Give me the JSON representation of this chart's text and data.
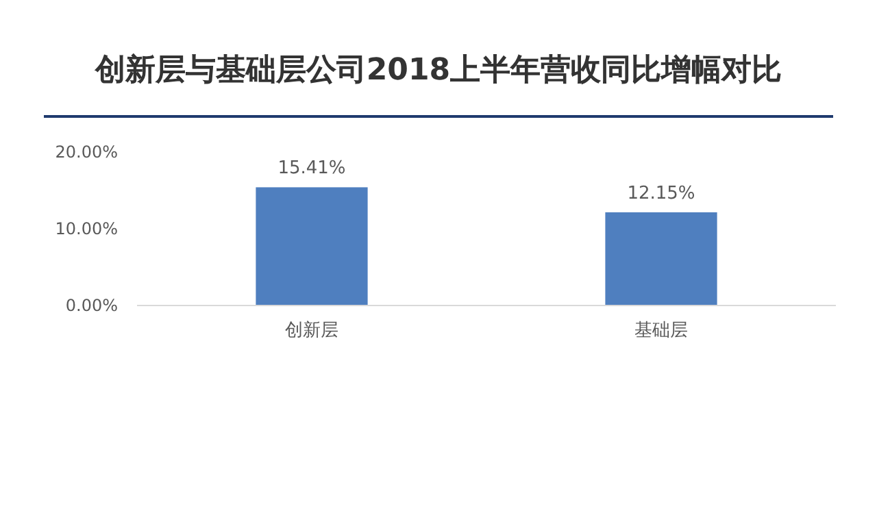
{
  "chart_data": {
    "type": "bar",
    "title": "创新层与基础层公司2018上半年营收同比增幅对比",
    "categories": [
      "创新层",
      "基础层"
    ],
    "values": [
      15.41,
      12.15
    ],
    "value_labels": [
      "15.41%",
      "12.15%"
    ],
    "color": "#4f7fbf",
    "ylim": [
      0,
      20
    ],
    "yticks": [
      {
        "value": 0,
        "label": "0.00%"
      },
      {
        "value": 10,
        "label": "10.00%"
      },
      {
        "value": 20,
        "label": "20.00%"
      }
    ],
    "grid": false
  }
}
